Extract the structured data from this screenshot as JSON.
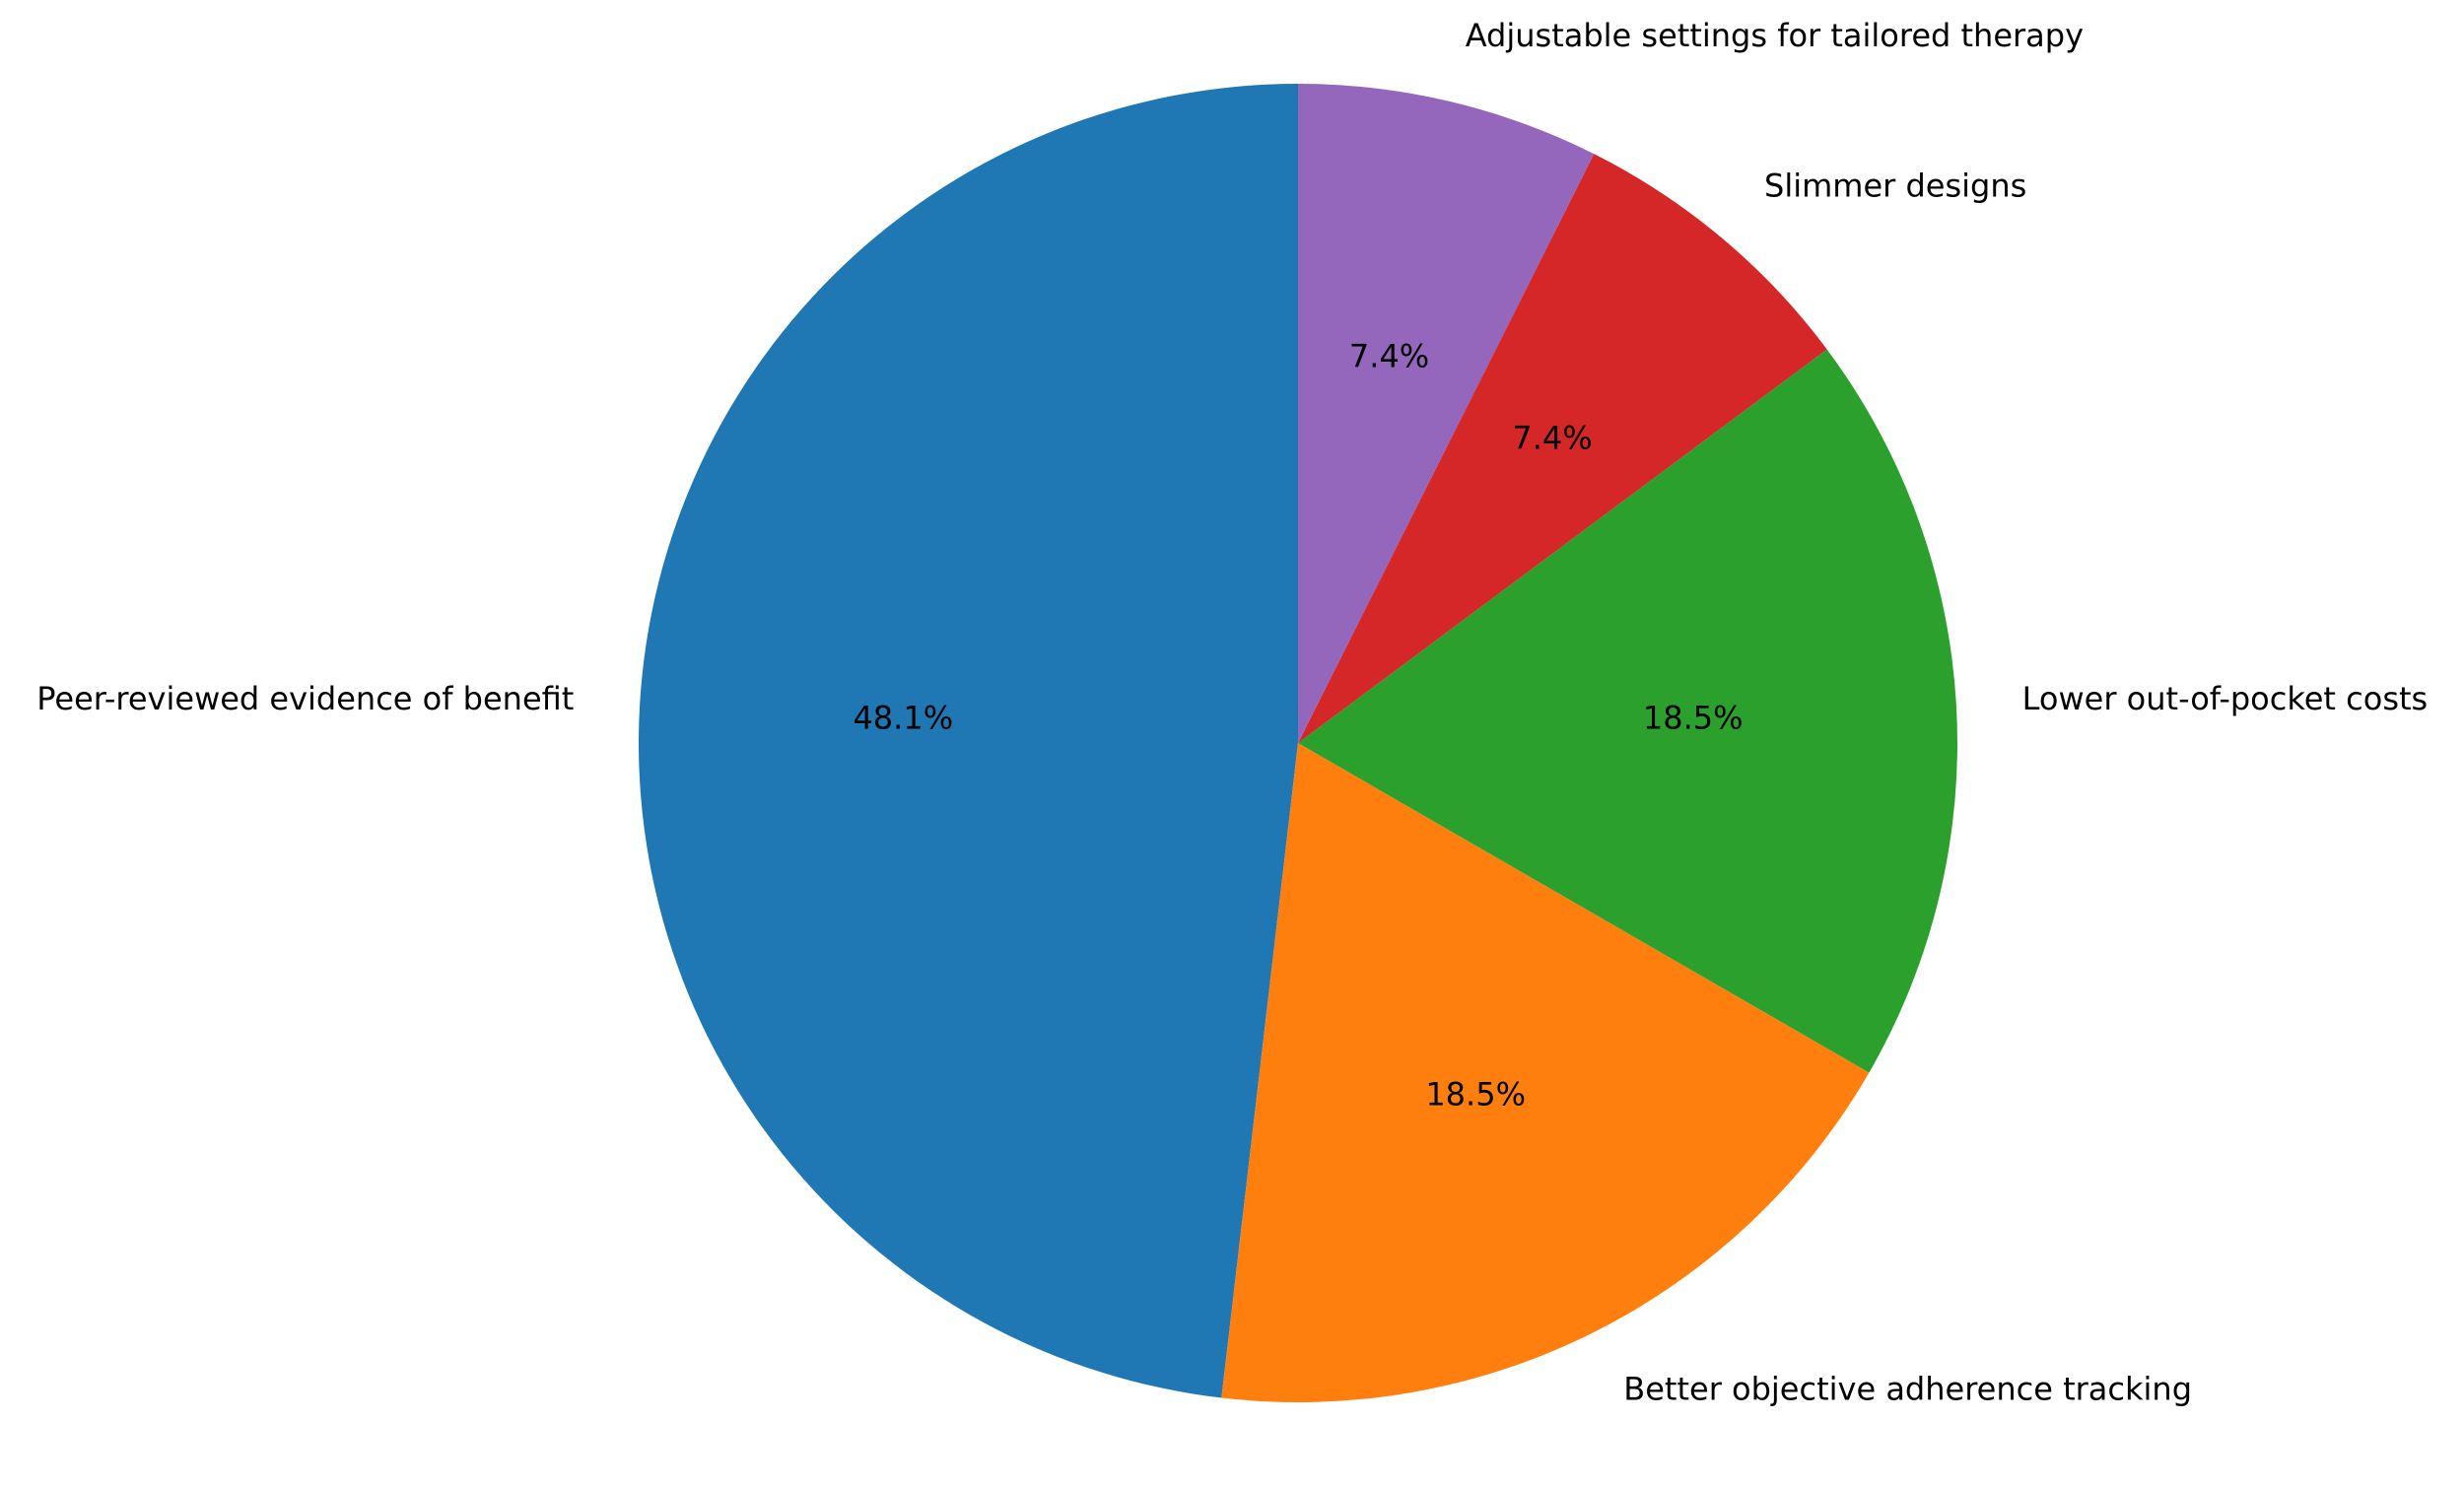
{
  "chart_data": {
    "type": "pie",
    "categories": [
      "Peer-reviewed evidence of benefit",
      "Better objective adherence tracking",
      "Lower out-of-pocket costs",
      "Slimmer designs",
      "Adjustable settings for tailored therapy"
    ],
    "values": [
      48.1,
      18.5,
      18.5,
      7.4,
      7.4
    ],
    "value_labels": [
      "48.1%",
      "18.5%",
      "18.5%",
      "7.4%",
      "7.4%"
    ],
    "colors": [
      "#1f77b4",
      "#ff7f0e",
      "#2ca02c",
      "#d62728",
      "#9467bd"
    ]
  }
}
